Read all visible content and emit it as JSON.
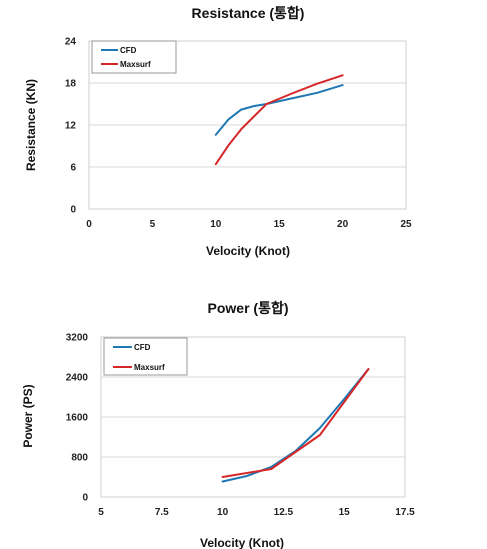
{
  "chart_data": [
    {
      "type": "line",
      "title": "Resistance (통합)",
      "xlabel": "Velocity (Knot)",
      "ylabel": "Resistance (KN)",
      "xlim": [
        0,
        25
      ],
      "ylim": [
        0,
        24
      ],
      "x_ticks": [
        "0",
        "5",
        "10",
        "15",
        "20",
        "25"
      ],
      "y_ticks": [
        "0",
        "6",
        "12",
        "18",
        "24"
      ],
      "grid": true,
      "legend": "top-left",
      "series": [
        {
          "name": "CFD",
          "color": "#1f77b4",
          "points": [
            [
              10,
              10.6
            ],
            [
              11,
              12.8
            ],
            [
              12,
              14.2
            ],
            [
              13,
              14.7
            ],
            [
              14,
              15.0
            ],
            [
              16,
              15.8
            ],
            [
              18,
              16.6
            ],
            [
              20,
              17.7
            ]
          ]
        },
        {
          "name": "Maxsurf",
          "color": "#d62728",
          "points": [
            [
              10,
              6.4
            ],
            [
              11,
              9.1
            ],
            [
              12,
              11.4
            ],
            [
              14,
              15.0
            ],
            [
              16,
              16.5
            ],
            [
              18,
              17.9
            ],
            [
              20,
              19.1
            ]
          ]
        }
      ]
    },
    {
      "type": "line",
      "title": "Power (통합)",
      "xlabel": "Velocity (Knot)",
      "ylabel": "Power (PS)",
      "xlim": [
        5,
        17.5
      ],
      "ylim": [
        0,
        3200
      ],
      "x_ticks": [
        "5",
        "7.5",
        "10",
        "12.5",
        "15",
        "17.5"
      ],
      "y_ticks": [
        "0",
        "800",
        "1600",
        "2400",
        "3200"
      ],
      "grid": true,
      "legend": "top-left",
      "series": [
        {
          "name": "CFD",
          "color": "#1f77b4",
          "points": [
            [
              10,
              310
            ],
            [
              11,
              420
            ],
            [
              12,
              600
            ],
            [
              13,
              920
            ],
            [
              14,
              1380
            ],
            [
              15,
              1960
            ],
            [
              16,
              2560
            ]
          ]
        },
        {
          "name": "Maxsurf",
          "color": "#d62728",
          "points": [
            [
              10,
              400
            ],
            [
              12,
              560
            ],
            [
              14,
              1240
            ],
            [
              16,
              2560
            ]
          ]
        }
      ]
    }
  ]
}
